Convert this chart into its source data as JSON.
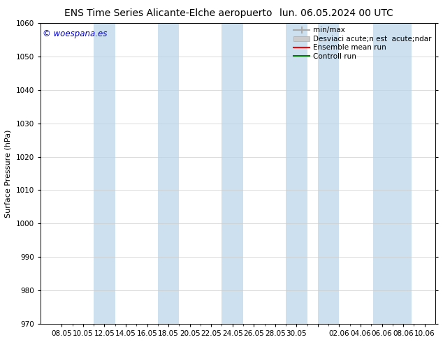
{
  "title_left": "ENS Time Series Alicante-Elche aeropuerto",
  "title_right": "lun. 06.05.2024 00 UTC",
  "ylabel": "Surface Pressure (hPa)",
  "ylim": [
    970,
    1060
  ],
  "yticks": [
    970,
    980,
    990,
    1000,
    1010,
    1020,
    1030,
    1040,
    1050,
    1060
  ],
  "xtick_labels": [
    "08.05",
    "10.05",
    "12.05",
    "14.05",
    "16.05",
    "18.05",
    "20.05",
    "22.05",
    "24.05",
    "26.05",
    "28.05",
    "30.05",
    "",
    "02.06",
    "04.06",
    "06.06",
    "08.06",
    "10.06"
  ],
  "background_color": "#ffffff",
  "plot_bg_color": "#ffffff",
  "shaded_band_color": "#cce0f0",
  "watermark": "© woespana.es",
  "watermark_color": "#0000cc",
  "legend_labels": [
    "min/max",
    "Desviaci acute;n est  acute;ndar",
    "Ensemble mean run",
    "Controll run"
  ],
  "legend_line_colors": [
    "#aaaaaa",
    "#bbbbbb",
    "#ff0000",
    "#007700"
  ],
  "title_fontsize": 10,
  "axis_label_fontsize": 8,
  "tick_fontsize": 7.5,
  "legend_fontsize": 7.5
}
